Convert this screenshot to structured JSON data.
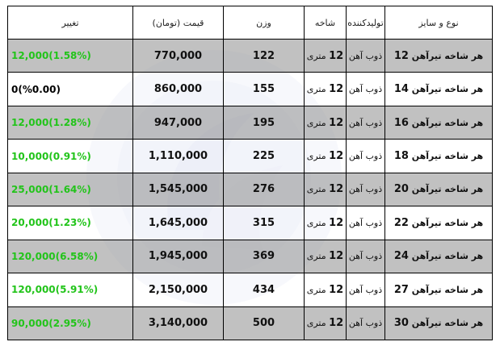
{
  "headers": {
    "type": "نوع و سایز",
    "producer": "تولیدکننده",
    "length": "شاخه",
    "weight": "وزن",
    "price": "قیمت (تومان)",
    "change": "تغییر"
  },
  "rows": [
    {
      "type_prefix": "هر شاخه تیرآهن",
      "size": "12",
      "producer": "ذوب آهن",
      "length_num": "12",
      "length_unit": "متری",
      "weight": "122",
      "price": "770,000",
      "change": "12,000(1.58%)",
      "change_dir": "up"
    },
    {
      "type_prefix": "هر شاخه تیرآهن",
      "size": "14",
      "producer": "ذوب آهن",
      "length_num": "12",
      "length_unit": "متری",
      "weight": "155",
      "price": "860,000",
      "change": "0(%0.00)",
      "change_dir": "flat"
    },
    {
      "type_prefix": "هر شاخه تیرآهن",
      "size": "16",
      "producer": "ذوب آهن",
      "length_num": "12",
      "length_unit": "متری",
      "weight": "195",
      "price": "947,000",
      "change": "12,000(1.28%)",
      "change_dir": "up"
    },
    {
      "type_prefix": "هر شاخه تیرآهن",
      "size": "18",
      "producer": "ذوب آهن",
      "length_num": "12",
      "length_unit": "متری",
      "weight": "225",
      "price": "1,110,000",
      "change": "10,000(0.91%)",
      "change_dir": "up"
    },
    {
      "type_prefix": "هر شاخه تیرآهن",
      "size": "20",
      "producer": "ذوب آهن",
      "length_num": "12",
      "length_unit": "متری",
      "weight": "276",
      "price": "1,545,000",
      "change": "25,000(1.64%)",
      "change_dir": "up"
    },
    {
      "type_prefix": "هر شاخه تیرآهن",
      "size": "22",
      "producer": "ذوب آهن",
      "length_num": "12",
      "length_unit": "متری",
      "weight": "315",
      "price": "1,645,000",
      "change": "20,000(1.23%)",
      "change_dir": "up"
    },
    {
      "type_prefix": "هر شاخه تیرآهن",
      "size": "24",
      "producer": "ذوب آهن",
      "length_num": "12",
      "length_unit": "متری",
      "weight": "369",
      "price": "1,945,000",
      "change": "120,000(6.58%)",
      "change_dir": "up"
    },
    {
      "type_prefix": "هر شاخه تیرآهن",
      "size": "27",
      "producer": "ذوب آهن",
      "length_num": "12",
      "length_unit": "متری",
      "weight": "434",
      "price": "2,150,000",
      "change": "120,000(5.91%)",
      "change_dir": "up"
    },
    {
      "type_prefix": "هر شاخه تیرآهن",
      "size": "30",
      "producer": "ذوب آهن",
      "length_num": "12",
      "length_unit": "متری",
      "weight": "500",
      "price": "3,140,000",
      "change": "90,000(2.95%)",
      "change_dir": "up"
    }
  ],
  "colors": {
    "change_up": "#22c41a",
    "change_flat": "#000000",
    "row_shaded": "#b0b0b0",
    "row_plain": "#ffffff",
    "watermark": "#5d6fb8"
  }
}
